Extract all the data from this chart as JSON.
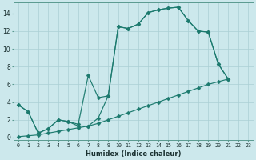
{
  "xlabel": "Humidex (Indice chaleur)",
  "bg_color": "#cce8ec",
  "line_color": "#1c7a6e",
  "grid_color": "#aacfd4",
  "xlim": [
    -0.5,
    23.5
  ],
  "ylim": [
    -0.3,
    15.2
  ],
  "xticks": [
    0,
    1,
    2,
    3,
    4,
    5,
    6,
    7,
    8,
    9,
    10,
    11,
    12,
    13,
    14,
    15,
    16,
    17,
    18,
    19,
    20,
    21,
    22,
    23
  ],
  "yticks": [
    0,
    2,
    4,
    6,
    8,
    10,
    12,
    14
  ],
  "curve1_x": [
    0,
    1,
    2,
    3,
    4,
    5,
    6,
    7,
    8,
    9,
    10,
    11,
    12,
    13,
    14,
    15,
    16,
    17,
    18,
    19,
    20,
    21
  ],
  "curve1_y": [
    3.7,
    2.9,
    0.5,
    1.0,
    2.0,
    1.8,
    1.3,
    1.3,
    2.2,
    4.7,
    12.5,
    12.3,
    12.8,
    14.1,
    14.4,
    14.6,
    14.7,
    13.2,
    12.0,
    11.9,
    8.3,
    6.6
  ],
  "curve2_x": [
    0,
    1,
    2,
    3,
    4,
    5,
    6,
    7,
    8,
    9,
    10,
    11,
    12,
    13,
    14,
    15,
    16,
    17,
    18,
    19,
    20,
    21
  ],
  "curve2_y": [
    3.7,
    2.9,
    0.5,
    1.0,
    2.0,
    1.8,
    1.5,
    7.0,
    4.5,
    4.7,
    12.5,
    12.3,
    12.8,
    14.1,
    14.4,
    14.6,
    14.7,
    13.2,
    12.0,
    11.9,
    8.3,
    6.6
  ],
  "curve3_x": [
    0,
    1,
    2,
    3,
    4,
    5,
    6,
    7,
    8,
    9,
    10,
    11,
    12,
    13,
    14,
    15,
    16,
    17,
    18,
    19,
    20,
    21
  ],
  "curve3_y": [
    0.1,
    0.2,
    0.3,
    0.5,
    0.7,
    0.9,
    1.1,
    1.3,
    1.6,
    2.0,
    2.4,
    2.8,
    3.2,
    3.6,
    4.0,
    4.4,
    4.8,
    5.2,
    5.6,
    6.0,
    6.3,
    6.6
  ],
  "markersize": 2.5
}
